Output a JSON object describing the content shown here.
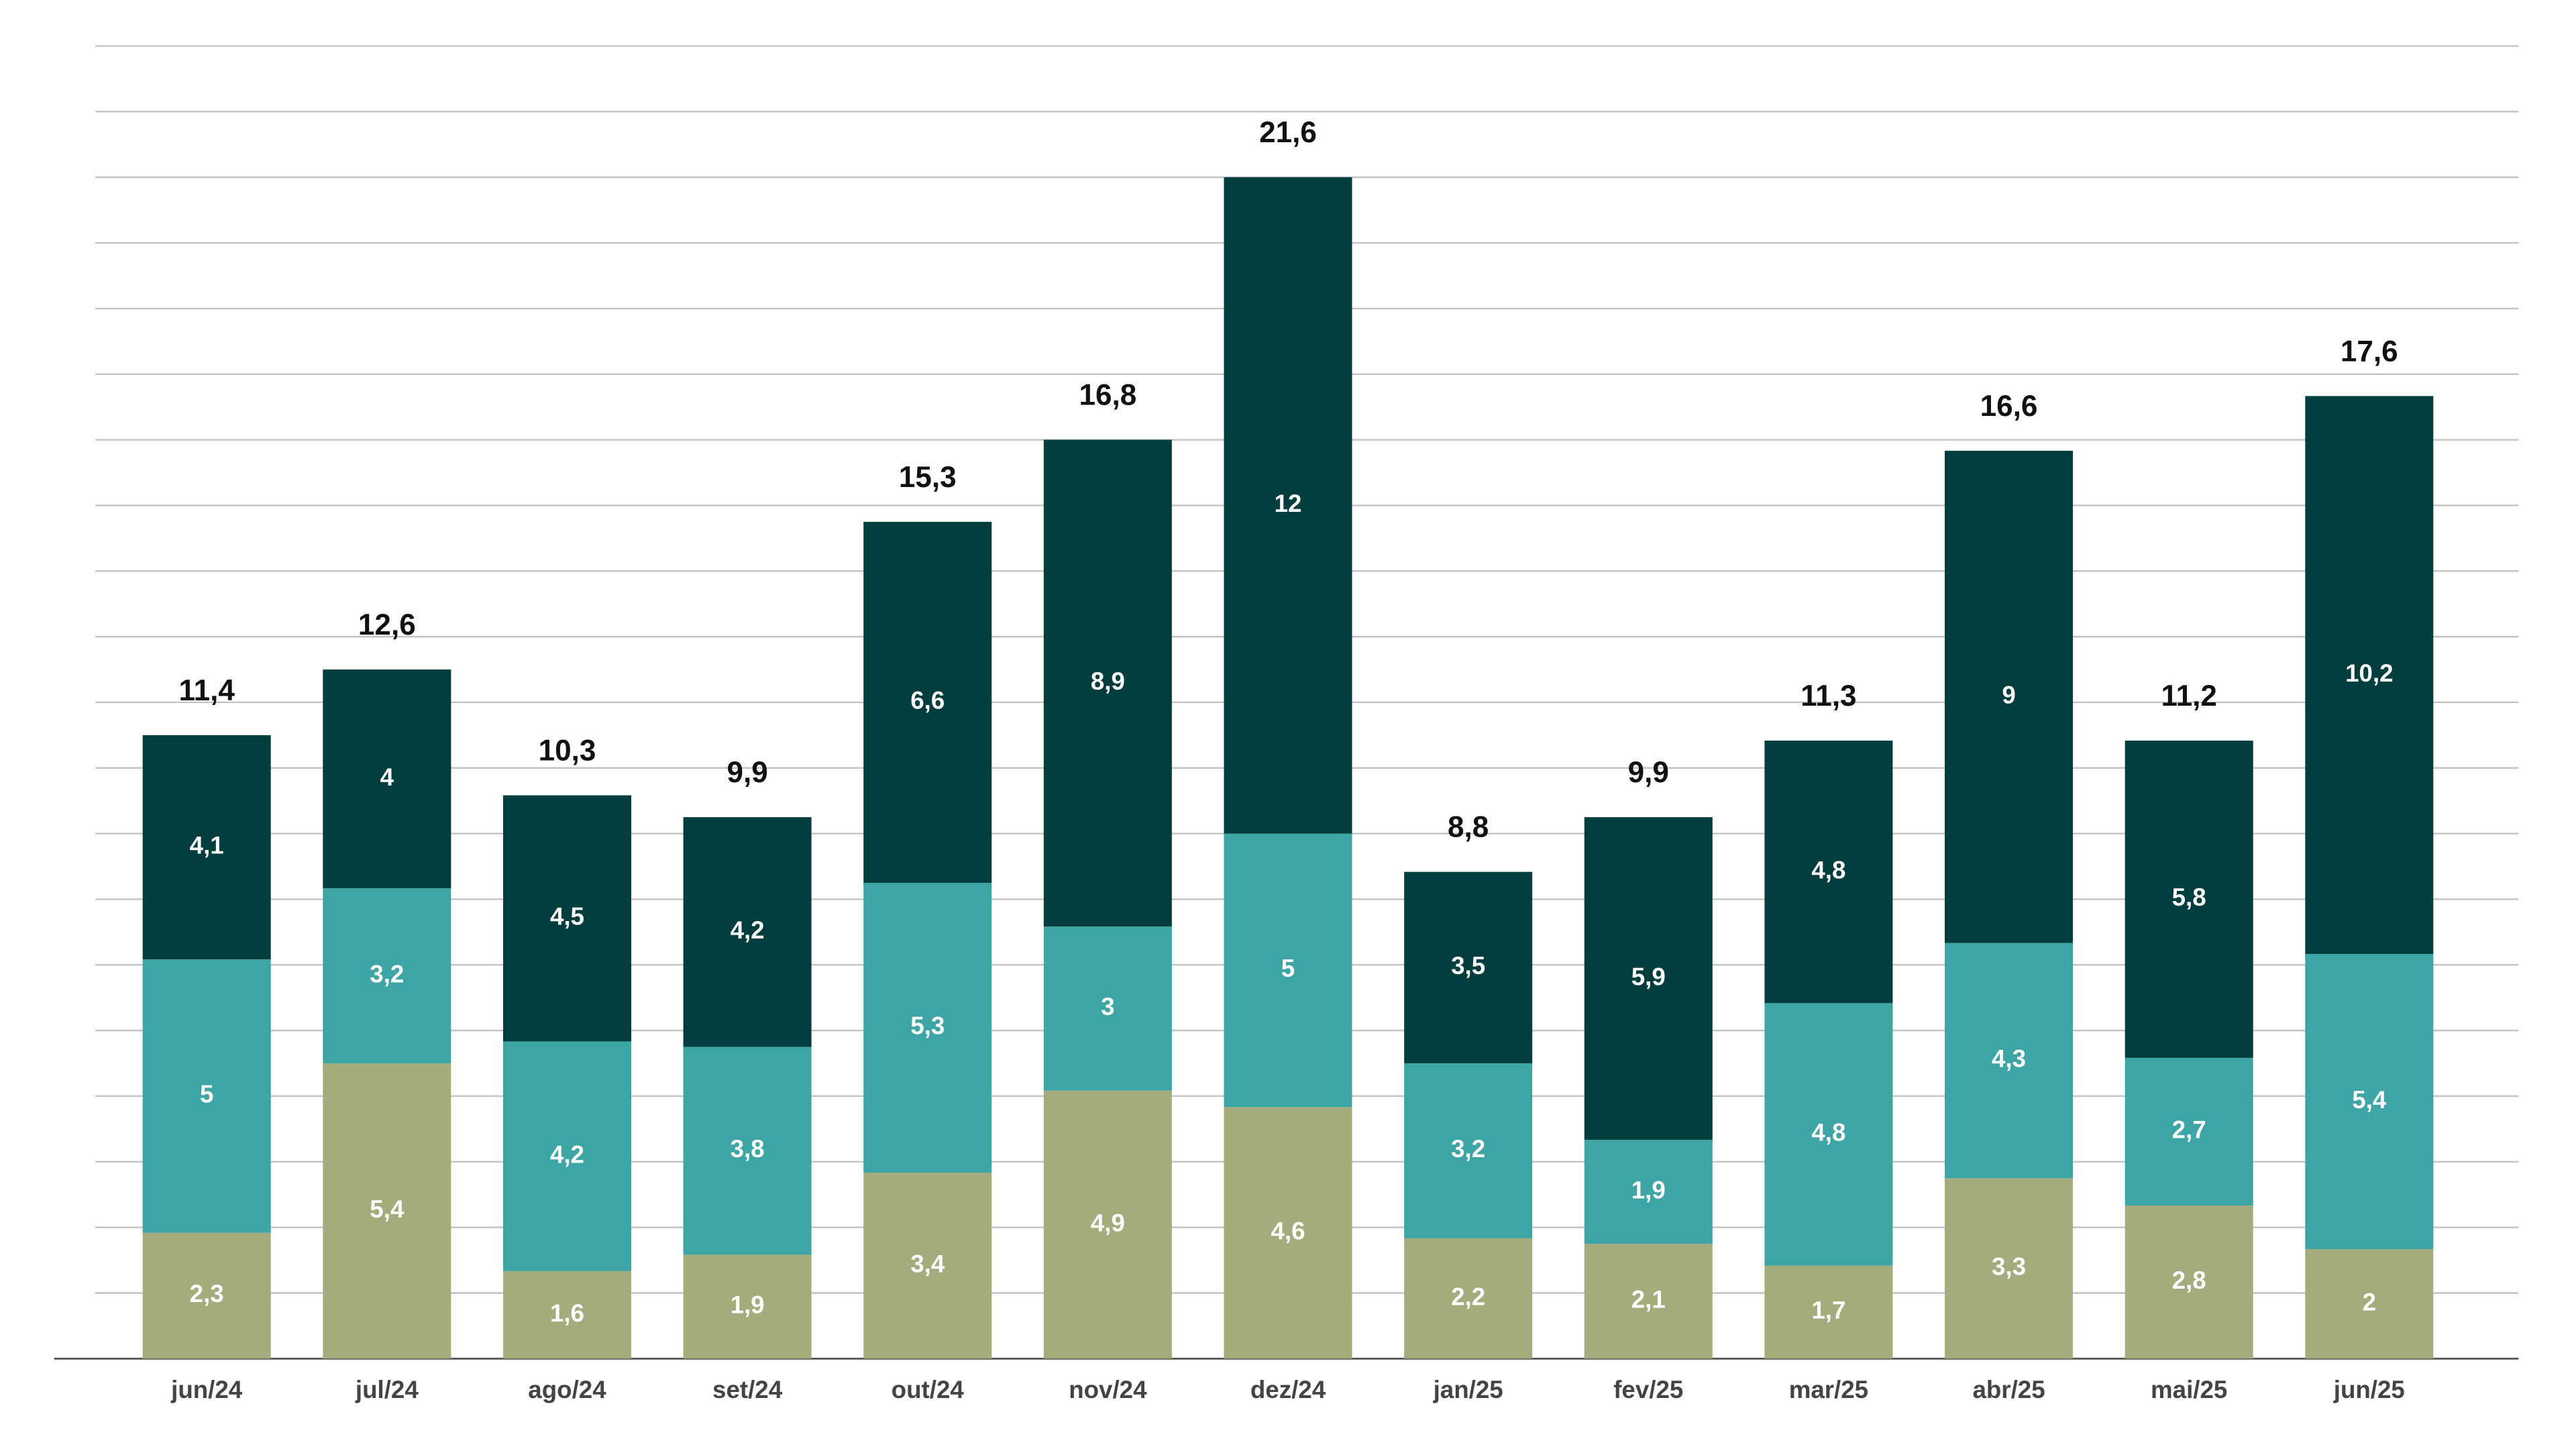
{
  "chart_data": {
    "type": "stacked_bar",
    "categories": [
      "jun/24",
      "jul/24",
      "ago/24",
      "set/24",
      "out/24",
      "nov/24",
      "dez/24",
      "jan/25",
      "fev/25",
      "mar/25",
      "abr/25",
      "mai/25",
      "jun/25"
    ],
    "series": [
      {
        "color": "#a4ab7c",
        "values": [
          2.3,
          5.4,
          1.6,
          1.9,
          3.4,
          4.9,
          4.6,
          2.2,
          2.1,
          1.7,
          3.3,
          2.8,
          2
        ],
        "value_labels": [
          "2,3",
          "5,4",
          "1,6",
          "1,9",
          "3,4",
          "4,9",
          "4,6",
          "2,2",
          "2,1",
          "1,7",
          "3,3",
          "2,8",
          "2"
        ]
      },
      {
        "color": "#3ea5a5",
        "values": [
          5,
          3.2,
          4.2,
          3.8,
          5.3,
          3,
          5,
          3.2,
          1.9,
          4.8,
          4.3,
          2.7,
          5.4
        ],
        "value_labels": [
          "5",
          "3,2",
          "4,2",
          "3,8",
          "5,3",
          "3",
          "5",
          "3,2",
          "1,9",
          "4,8",
          "4,3",
          "2,7",
          "5,4"
        ]
      },
      {
        "color": "#033d3d",
        "values": [
          4.1,
          4,
          4.5,
          4.2,
          6.6,
          8.9,
          12,
          3.5,
          5.9,
          4.8,
          9,
          5.8,
          10.2
        ],
        "value_labels": [
          "4,1",
          "4",
          "4,5",
          "4,2",
          "6,6",
          "8,9",
          "12",
          "3,5",
          "5,9",
          "4,8",
          "9",
          "5,8",
          "10,2"
        ]
      }
    ],
    "totals": {
      "values": [
        11.4,
        12.6,
        10.3,
        9.9,
        15.3,
        16.8,
        21.6,
        8.8,
        9.9,
        11.3,
        16.6,
        11.2,
        17.6
      ],
      "value_labels": [
        "11,4",
        "12,6",
        "10,3",
        "9,9",
        "15,3",
        "16,8",
        "21,6",
        "8,8",
        "9,9",
        "11,3",
        "16,6",
        "11,2",
        "17,6"
      ]
    },
    "ylim": [
      0,
      24
    ],
    "yticks": [
      0,
      1.2,
      2.4,
      3.6,
      4.8,
      6,
      7.2,
      8.4,
      9.6,
      10.8,
      12,
      13.2,
      14.4,
      15.6,
      16.8,
      18,
      19.2,
      20.4,
      21.6,
      22.8,
      24
    ],
    "grid": true
  }
}
